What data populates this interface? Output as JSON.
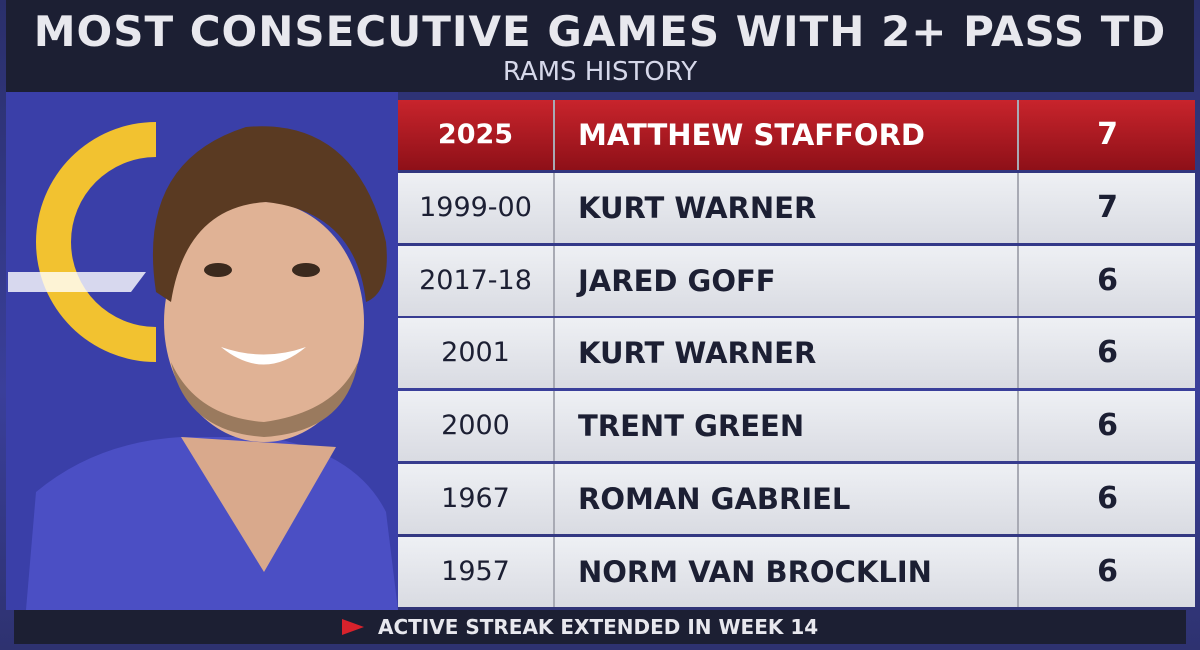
{
  "header": {
    "title": "MOST CONSECUTIVE GAMES WITH 2+ PASS TD",
    "subtitle": "RAMS HISTORY"
  },
  "table": {
    "rows": [
      [
        "2025",
        "MATTHEW STAFFORD",
        7
      ],
      [
        "1999-00",
        "KURT WARNER",
        7
      ],
      [
        "2017-18",
        "JARED GOFF",
        6
      ],
      [
        "2001",
        "KURT WARNER",
        6
      ],
      [
        "2000",
        "TRENT GREEN",
        6
      ],
      [
        "1967",
        "ROMAN GABRIEL",
        6
      ],
      [
        "1957",
        "NORM VAN BROCKLIN",
        6
      ]
    ]
  },
  "footer": {
    "text": "ACTIVE STREAK EXTENDED IN WEEK 14"
  }
}
